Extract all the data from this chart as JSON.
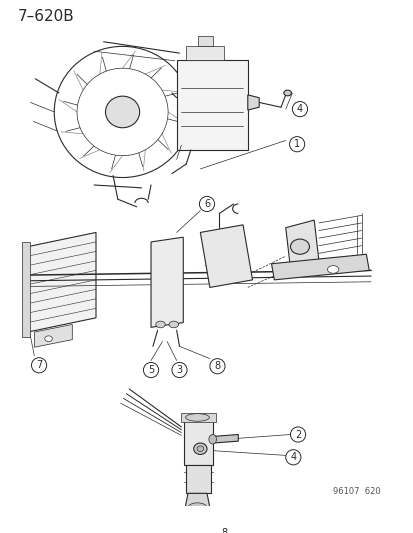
{
  "title": "7–620B",
  "bg_color": "#ffffff",
  "line_color": "#2a2a2a",
  "footer_text": "96107  620",
  "font_size_title": 11,
  "font_size_labels": 7,
  "font_size_footer": 6,
  "lw_thin": 0.5,
  "lw_med": 0.8,
  "lw_thick": 1.1
}
